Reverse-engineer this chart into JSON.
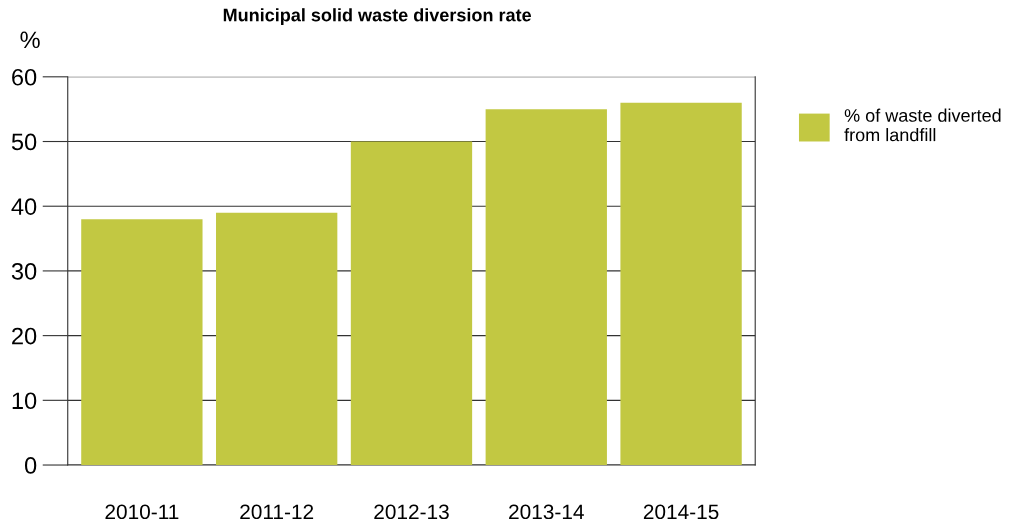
{
  "chart_data": {
    "type": "bar",
    "title": "Municipal solid waste diversion rate",
    "ylabel": "%",
    "categories": [
      "2010-11",
      "2011-12",
      "2012-13",
      "2013-14",
      "2014-15"
    ],
    "series": [
      {
        "name": "% of waste diverted\nfrom landfill",
        "color": "#c2c842",
        "values": [
          38,
          39,
          50,
          55,
          56
        ]
      }
    ],
    "ylim": [
      0,
      60
    ],
    "yticks": [
      0,
      10,
      20,
      30,
      40,
      50,
      60
    ],
    "grid": "y",
    "legend": "top right"
  }
}
